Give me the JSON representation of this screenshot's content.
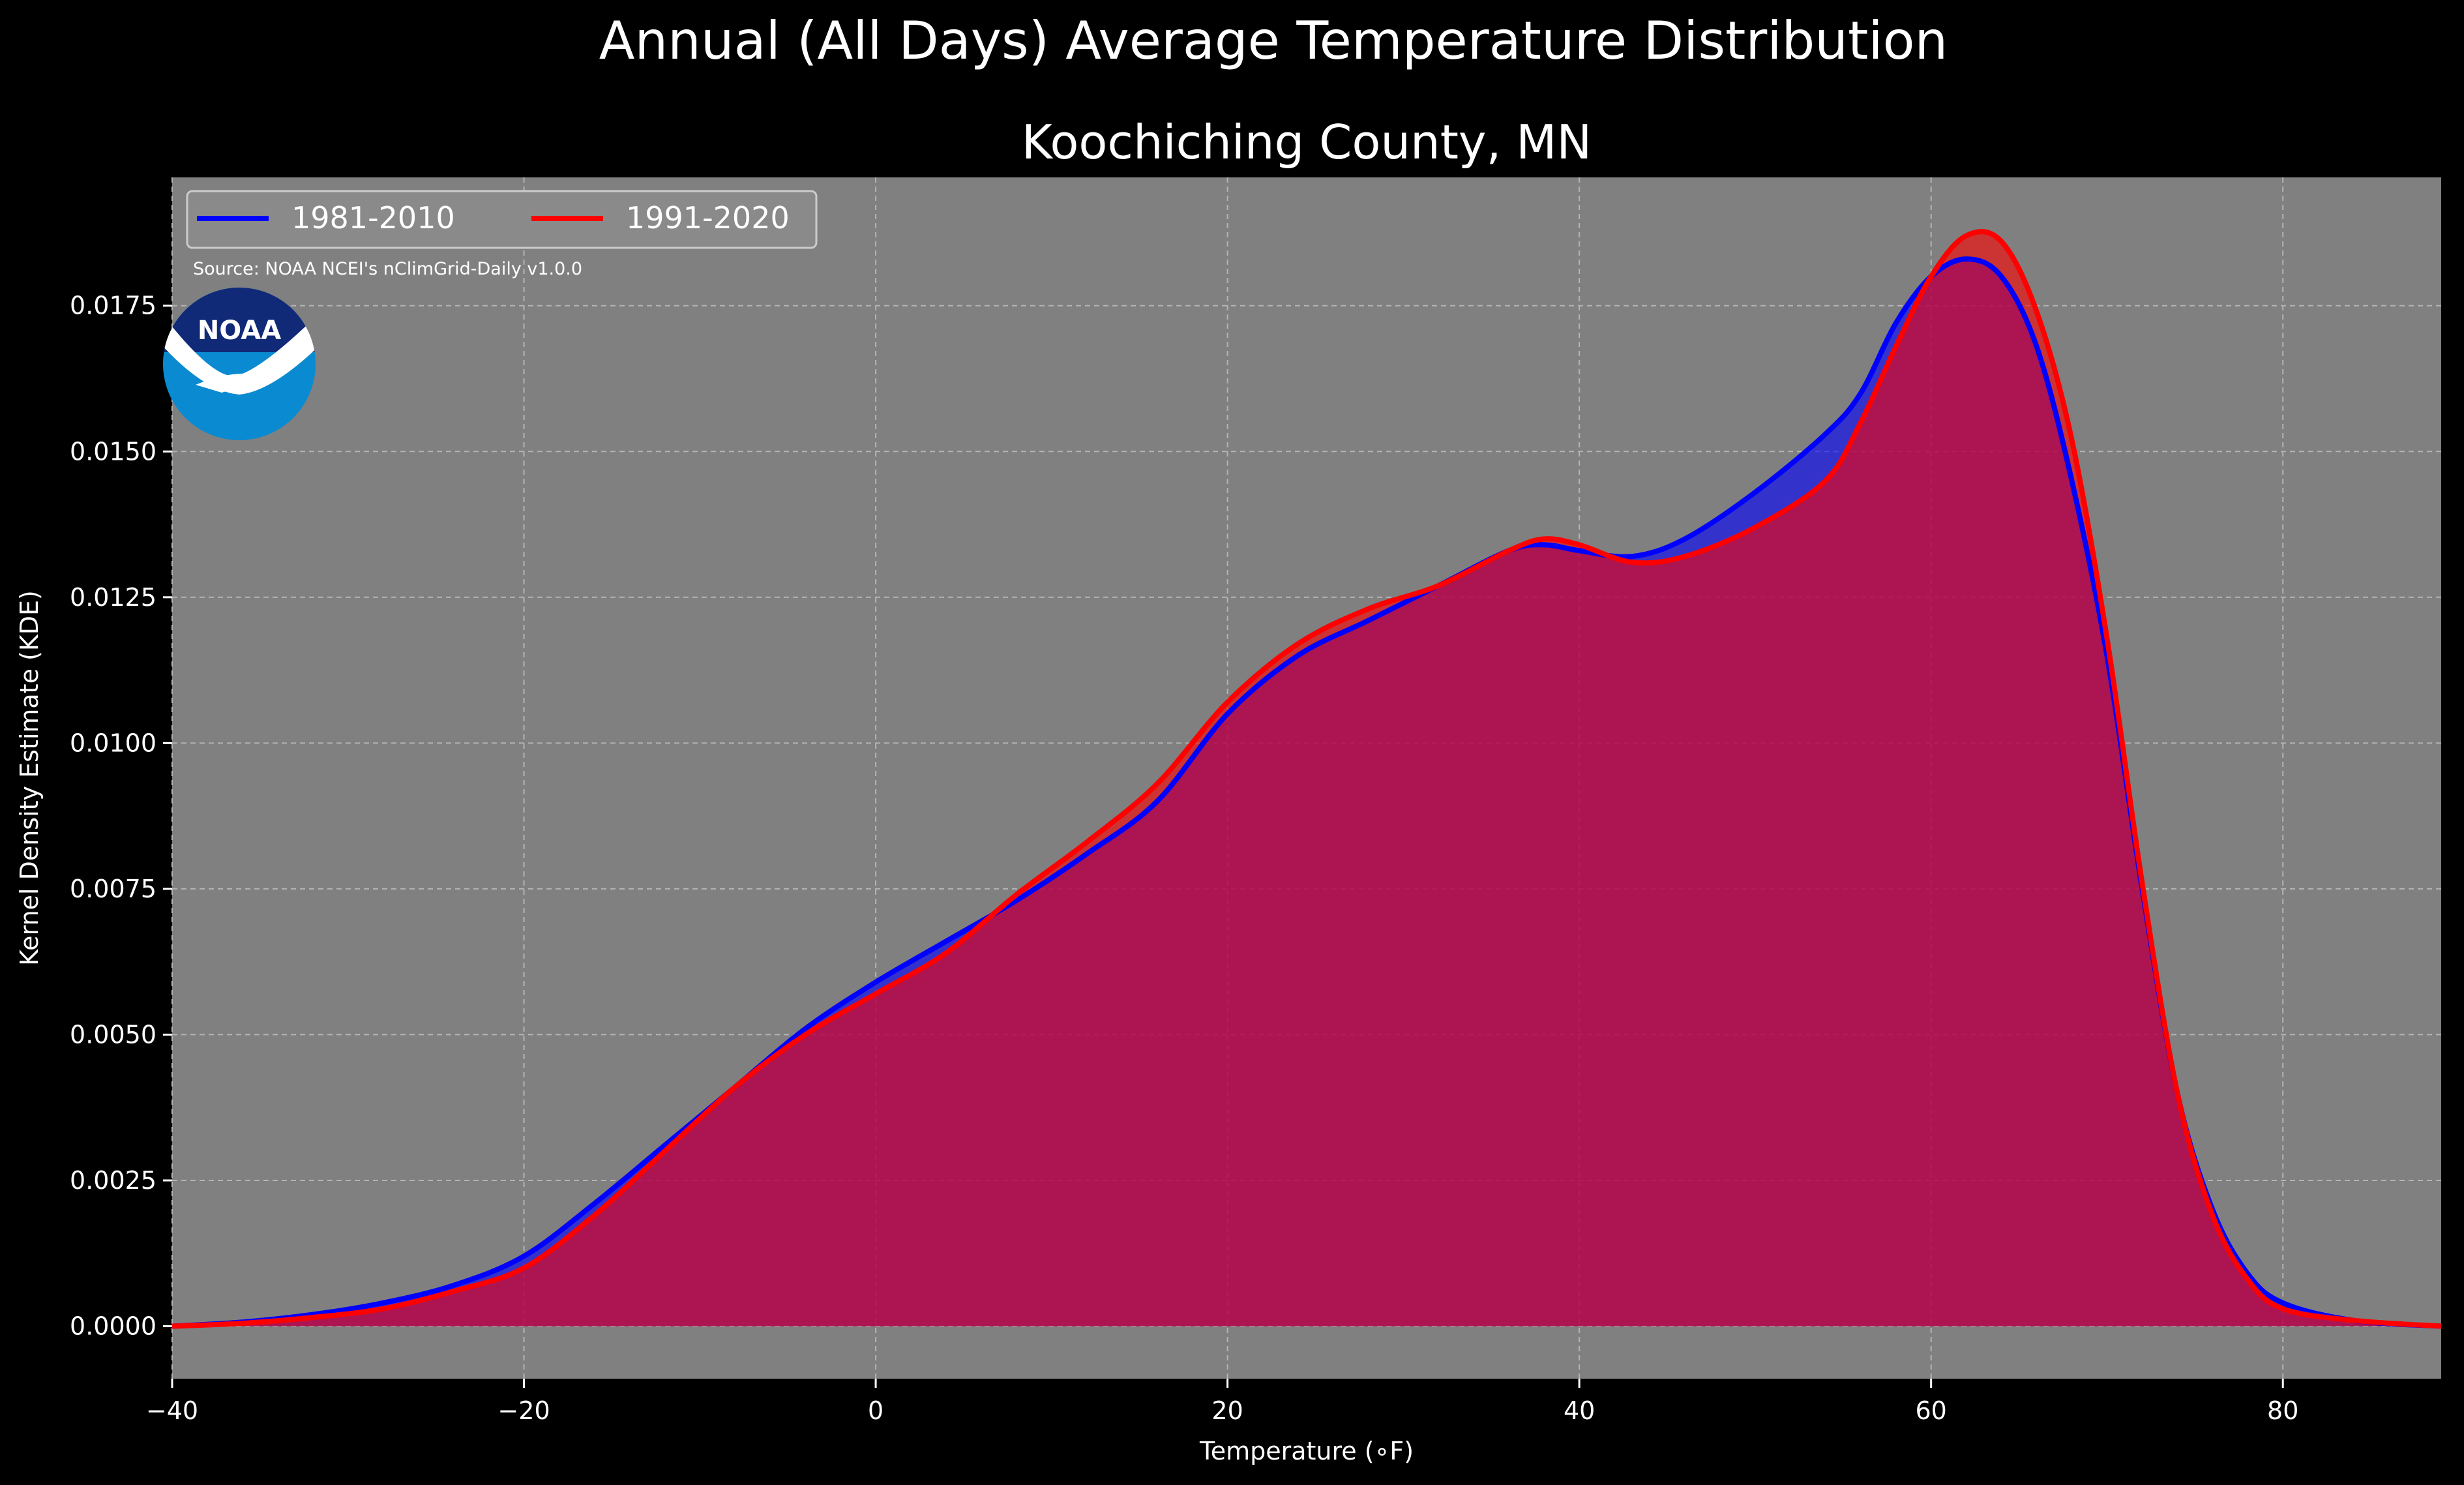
{
  "chart_data": {
    "type": "area",
    "title": "Annual (All Days) Average Temperature Distribution",
    "subtitle": "Koochiching County, MN",
    "xlabel": "Temperature (∘F)",
    "ylabel": "Kernel Density Estimate (KDE)",
    "xlim": [
      -40,
      89
    ],
    "ylim": [
      -0.0009,
      0.0197
    ],
    "x_ticks": [
      -40,
      -20,
      0,
      20,
      40,
      60,
      80
    ],
    "x_tick_labels": [
      "−40",
      "−20",
      "0",
      "20",
      "40",
      "60",
      "80"
    ],
    "y_ticks": [
      0,
      0.0025,
      0.005,
      0.0075,
      0.01,
      0.0125,
      0.015,
      0.0175
    ],
    "y_tick_labels": [
      "0.0000",
      "0.0025",
      "0.0050",
      "0.0075",
      "0.0100",
      "0.0125",
      "0.0150",
      "0.0175"
    ],
    "grid": true,
    "legend_placement": "top-left",
    "source_note": "Source: NOAA NCEI's nClimGrid-Daily v1.0.0",
    "logo_text": "NOAA",
    "x": [
      -40,
      -36,
      -32,
      -28,
      -24,
      -20,
      -16,
      -12,
      -8,
      -4,
      0,
      4,
      8,
      12,
      16,
      20,
      24,
      28,
      32,
      36,
      38,
      40,
      43,
      46,
      50,
      54,
      56,
      58,
      60,
      62,
      64,
      66,
      68,
      70,
      72,
      74,
      76,
      78,
      80,
      84,
      89
    ],
    "series": [
      {
        "name": "1981-2010",
        "color": "#0000ff",
        "values": [
          0.0,
          7e-05,
          0.0002,
          0.0004,
          0.0007,
          0.0012,
          0.0021,
          0.0031,
          0.0041,
          0.0051,
          0.0059,
          0.0066,
          0.0073,
          0.0081,
          0.009,
          0.0105,
          0.0115,
          0.0121,
          0.0127,
          0.0133,
          0.0134,
          0.0133,
          0.0132,
          0.0135,
          0.0143,
          0.0153,
          0.016,
          0.0172,
          0.018,
          0.0183,
          0.018,
          0.0168,
          0.0145,
          0.0115,
          0.0075,
          0.004,
          0.002,
          0.0009,
          0.0004,
          0.0001,
          0.0
        ]
      },
      {
        "name": "1991-2020",
        "color": "#ff0000",
        "values": [
          0.0,
          5e-05,
          0.00015,
          0.0003,
          0.0006,
          0.001,
          0.0019,
          0.003,
          0.0041,
          0.005,
          0.0057,
          0.0064,
          0.0074,
          0.0083,
          0.0093,
          0.0107,
          0.0117,
          0.0123,
          0.0127,
          0.0133,
          0.0135,
          0.0134,
          0.0131,
          0.0132,
          0.0137,
          0.0145,
          0.0155,
          0.0168,
          0.018,
          0.0187,
          0.0186,
          0.0174,
          0.0152,
          0.0118,
          0.0076,
          0.004,
          0.0019,
          0.0008,
          0.0003,
          0.0001,
          0.0
        ]
      }
    ]
  }
}
